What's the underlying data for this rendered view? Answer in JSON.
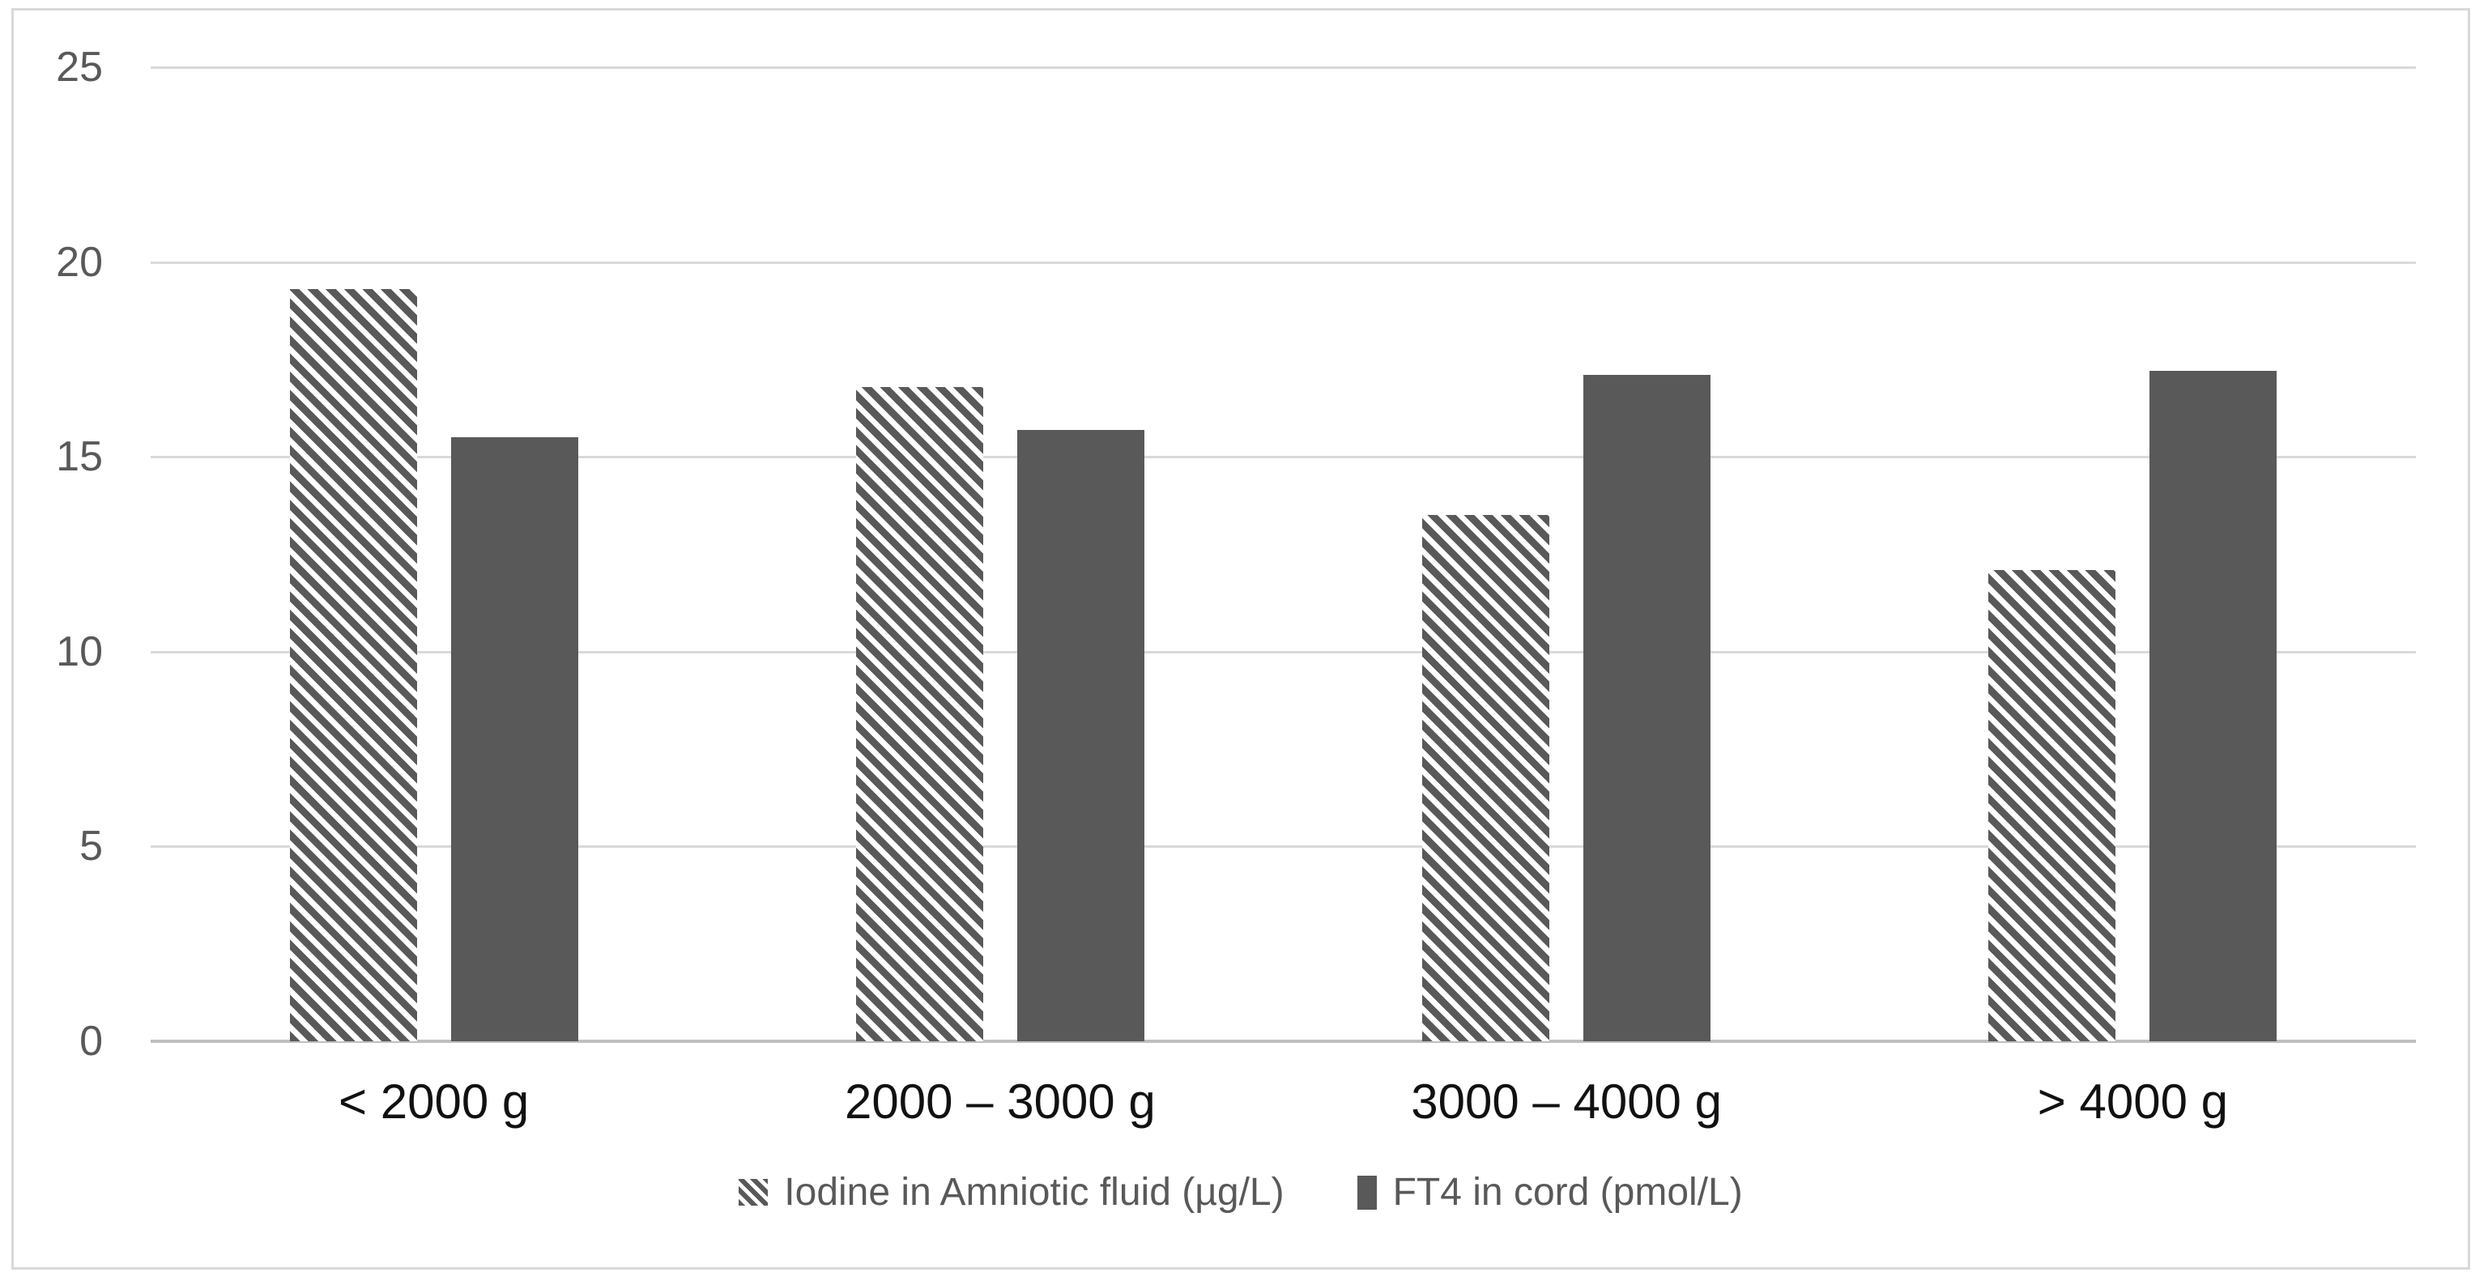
{
  "chart_data": {
    "type": "bar",
    "title": "",
    "xlabel": "",
    "ylabel": "",
    "categories": [
      "< 2000 g",
      "2000 – 3000 g",
      "3000 – 4000 g",
      "> 4000 g"
    ],
    "series": [
      {
        "name": "Iodine in Amniotic fluid (µg/L)",
        "style": "hatched",
        "values": [
          19.3,
          16.8,
          13.5,
          12.1
        ]
      },
      {
        "name": "FT4 in cord (pmol/L)",
        "style": "solid",
        "values": [
          15.5,
          15.7,
          17.1,
          17.2
        ]
      }
    ],
    "ylim": [
      0,
      25
    ],
    "yticks": [
      0,
      5,
      10,
      15,
      20,
      25
    ],
    "grid": true,
    "legend_position": "bottom",
    "colors": {
      "bar": "#595959",
      "gridline": "#d9d9d9",
      "axis_line": "#bfbfbf",
      "tick_label": "#595959",
      "category_label": "#111111",
      "legend_text": "#595959",
      "chart_border": "#d9d9d9",
      "background": "#ffffff"
    }
  }
}
